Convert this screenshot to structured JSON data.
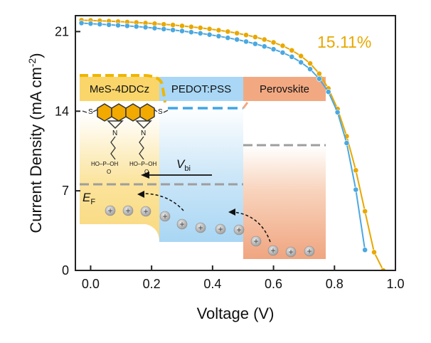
{
  "chart_data": {
    "type": "line",
    "xlabel": "Voltage (V)",
    "ylabel_main": "Current Density (mA cm",
    "ylabel_sup": "-2",
    "ylabel_close": ")",
    "xlim": [
      -0.05,
      1.0
    ],
    "ylim": [
      0,
      22.4
    ],
    "xticks": [
      "0.0",
      "0.2",
      "0.4",
      "0.6",
      "0.8",
      "1.0"
    ],
    "yticks": [
      "0",
      "7",
      "14",
      "21"
    ],
    "annotation": {
      "text": "15.11%",
      "color": "#E8A800"
    },
    "series": [
      {
        "name": "MeS-4DDCz (gold)",
        "color": "#E8A800",
        "x": [
          -0.03,
          0.0,
          0.03,
          0.06,
          0.09,
          0.12,
          0.15,
          0.18,
          0.21,
          0.24,
          0.27,
          0.3,
          0.33,
          0.36,
          0.39,
          0.42,
          0.45,
          0.48,
          0.51,
          0.54,
          0.57,
          0.6,
          0.63,
          0.66,
          0.69,
          0.72,
          0.75,
          0.78,
          0.81,
          0.84,
          0.87,
          0.9,
          0.93,
          0.96
        ],
        "y": [
          22.0,
          21.98,
          21.95,
          21.92,
          21.88,
          21.84,
          21.8,
          21.75,
          21.7,
          21.64,
          21.58,
          21.5,
          21.42,
          21.33,
          21.23,
          21.12,
          21.0,
          20.86,
          20.7,
          20.52,
          20.3,
          20.05,
          19.75,
          19.35,
          18.85,
          18.2,
          17.3,
          16.0,
          14.2,
          11.8,
          8.8,
          5.2,
          1.6,
          0
        ]
      },
      {
        "name": "PEDOT:PSS (blue)",
        "color": "#4BA8E0",
        "x": [
          -0.03,
          0.0,
          0.03,
          0.06,
          0.09,
          0.12,
          0.15,
          0.18,
          0.21,
          0.24,
          0.27,
          0.3,
          0.33,
          0.36,
          0.39,
          0.42,
          0.45,
          0.48,
          0.51,
          0.54,
          0.57,
          0.6,
          0.63,
          0.66,
          0.69,
          0.72,
          0.75,
          0.78,
          0.81,
          0.84,
          0.87,
          0.9
        ],
        "y": [
          21.75,
          21.7,
          21.65,
          21.6,
          21.55,
          21.5,
          21.44,
          21.38,
          21.3,
          21.22,
          21.14,
          21.05,
          20.95,
          20.85,
          20.73,
          20.6,
          20.45,
          20.3,
          20.12,
          19.92,
          19.7,
          19.45,
          19.15,
          18.78,
          18.3,
          17.7,
          16.85,
          15.7,
          13.9,
          11.2,
          7.1,
          1.8
        ]
      }
    ]
  },
  "inset": {
    "labels": {
      "mes": "MeS-4DDCz",
      "pedot": "PEDOT:PSS",
      "perov": "Perovskite"
    },
    "ef_main": "E",
    "ef_sub": "F",
    "vbi_main": "V",
    "vbi_sub": "bi",
    "molecule": {
      "s_left": "S",
      "s_right": "S",
      "n_left": "N",
      "n_right": "N",
      "p_left_group": "HO–P–OH",
      "p_right_group": "HO–P–OH",
      "o_left": "O",
      "o_right": "O"
    },
    "hole_symbol": "+"
  }
}
